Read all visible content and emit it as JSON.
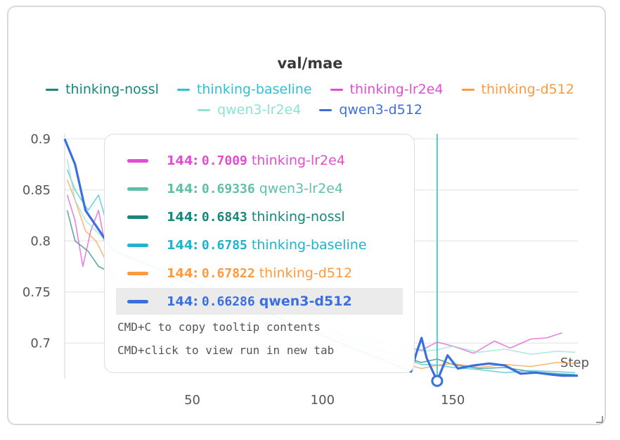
{
  "chart_data": {
    "type": "line",
    "title": "val/mae",
    "xlabel": "Step",
    "ylabel": "",
    "xlim": [
      1,
      198
    ],
    "ylim": [
      0.665,
      0.905
    ],
    "x_ticks": [
      50,
      100,
      150
    ],
    "y_ticks": [
      0.7,
      0.75,
      0.8,
      0.85,
      0.9
    ],
    "y_tick_labels": [
      "0.7",
      "0.75",
      "0.8",
      "0.85",
      "0.9"
    ],
    "x_tick_labels": [
      "50",
      "100",
      "150"
    ],
    "grid": true,
    "legend_position": "top",
    "hover_step": 144,
    "series": [
      {
        "name": "thinking-nossl",
        "color": "#16877a",
        "x": [
          2,
          5,
          10,
          14,
          18,
          22,
          138,
          144,
          150,
          160,
          170,
          180,
          190,
          197
        ],
        "values": [
          0.83,
          0.8,
          0.79,
          0.775,
          0.77,
          0.765,
          0.681,
          0.6843,
          0.679,
          0.675,
          0.676,
          0.672,
          0.67,
          0.669
        ]
      },
      {
        "name": "thinking-baseline",
        "color": "#2fc1d3",
        "x": [
          2,
          5,
          10,
          14,
          18,
          22,
          138,
          144,
          150,
          160,
          170,
          180,
          190,
          197
        ],
        "values": [
          0.87,
          0.85,
          0.83,
          0.845,
          0.81,
          0.79,
          0.679,
          0.6785,
          0.676,
          0.674,
          0.671,
          0.673,
          0.672,
          0.671
        ]
      },
      {
        "name": "thinking-lr2e4",
        "color": "#e04fcf",
        "x": [
          2,
          5,
          8,
          11,
          14,
          17,
          20,
          138,
          144,
          150,
          158,
          166,
          172,
          180,
          186,
          192
        ],
        "values": [
          0.845,
          0.82,
          0.775,
          0.81,
          0.83,
          0.79,
          0.75,
          0.693,
          0.7009,
          0.697,
          0.69,
          0.702,
          0.695,
          0.704,
          0.705,
          0.71
        ]
      },
      {
        "name": "thinking-d512",
        "color": "#fb9b3e",
        "x": [
          2,
          5,
          9,
          13,
          17,
          21,
          138,
          144,
          150,
          160,
          170,
          180,
          190,
          197
        ],
        "values": [
          0.86,
          0.84,
          0.81,
          0.8,
          0.78,
          0.76,
          0.675,
          0.67822,
          0.68,
          0.676,
          0.679,
          0.677,
          0.681,
          0.68
        ]
      },
      {
        "name": "qwen3-lr2e4",
        "color": "#8ee3d3",
        "x": [
          2,
          5,
          9,
          13,
          17,
          21,
          138,
          144,
          150,
          160,
          170,
          180,
          190,
          197
        ],
        "values": [
          0.88,
          0.84,
          0.82,
          0.81,
          0.8,
          0.79,
          0.692,
          0.69336,
          0.697,
          0.691,
          0.694,
          0.689,
          0.692,
          0.691
        ]
      },
      {
        "name": "qwen3-d512",
        "color": "#3b6fe0",
        "x": [
          1,
          5,
          9,
          13,
          17,
          20,
          134,
          136,
          138,
          140,
          142,
          144,
          148,
          152,
          158,
          164,
          170,
          176,
          182,
          188,
          192,
          198
        ],
        "values": [
          0.9,
          0.875,
          0.83,
          0.815,
          0.8,
          0.79,
          0.672,
          0.69,
          0.705,
          0.685,
          0.674,
          0.66286,
          0.688,
          0.675,
          0.678,
          0.68,
          0.678,
          0.67,
          0.671,
          0.669,
          0.668,
          0.668
        ]
      }
    ]
  },
  "tooltip": {
    "rows": [
      {
        "step": "144:",
        "value": "0.7009",
        "name": "thinking-lr2e4",
        "color": "#e04fcf",
        "highlight": false
      },
      {
        "step": "144:",
        "value": "0.69336",
        "name": "qwen3-lr2e4",
        "color": "#5fbfa8",
        "highlight": false
      },
      {
        "step": "144:",
        "value": "0.6843",
        "name": "thinking-nossl",
        "color": "#16877a",
        "highlight": false
      },
      {
        "step": "144:",
        "value": "0.6785",
        "name": "thinking-baseline",
        "color": "#1fb3cc",
        "highlight": false
      },
      {
        "step": "144:",
        "value": "0.67822",
        "name": "thinking-d512",
        "color": "#fb9b3e",
        "highlight": false
      },
      {
        "step": "144:",
        "value": "0.66286",
        "name": "qwen3-d512",
        "color": "#3b6fe0",
        "highlight": true
      }
    ],
    "hint_copy": "CMD+C to copy tooltip contents",
    "hint_click": "CMD+click to view run in new tab"
  },
  "legend": {
    "row1": [
      {
        "name": "thinking-nossl",
        "color": "#16877a"
      },
      {
        "name": "thinking-baseline",
        "color": "#2fc1d3"
      },
      {
        "name": "thinking-lr2e4",
        "color": "#e04fcf"
      },
      {
        "name": "thinking-d512",
        "color": "#fb9b3e"
      }
    ],
    "row2": [
      {
        "name": "qwen3-lr2e4",
        "color": "#8ee3d3"
      },
      {
        "name": "qwen3-d512",
        "color": "#3b6fe0"
      }
    ]
  }
}
